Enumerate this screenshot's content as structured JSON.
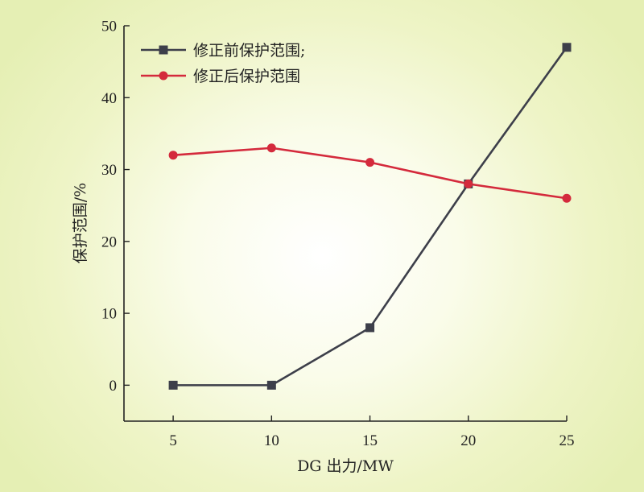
{
  "chart_data": {
    "type": "line",
    "xlabel": "DG 出力/MW",
    "ylabel": "保护范围/%",
    "x": [
      5,
      10,
      15,
      20,
      25
    ],
    "xticks": [
      "5",
      "10",
      "15",
      "20",
      "25"
    ],
    "yticks": [
      "0",
      "10",
      "20",
      "30",
      "40",
      "50"
    ],
    "xlim": [
      2.5,
      25
    ],
    "ylim": [
      -5,
      50
    ],
    "grid": false,
    "legend_position": "top-left",
    "series": [
      {
        "name": "修正前保护范围;",
        "values": [
          0,
          0,
          8,
          28,
          47
        ],
        "color": "#3d3f4a",
        "marker": "square"
      },
      {
        "name": "修正后保护范围",
        "values": [
          32,
          33,
          31,
          28,
          26
        ],
        "color": "#d42a3c",
        "marker": "circle"
      }
    ]
  }
}
